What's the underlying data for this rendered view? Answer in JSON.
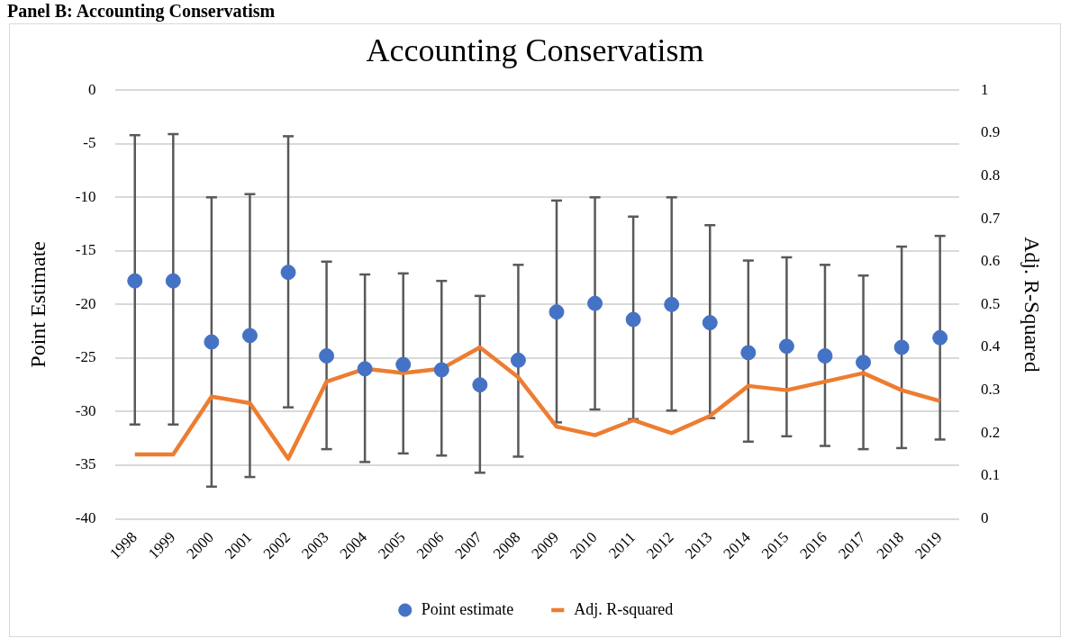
{
  "chart_data": {
    "type": "scatter",
    "title": "Accounting Conservatism",
    "annotations": [
      "Panel B: Accounting Conservatism"
    ],
    "categories": [
      "1998",
      "1999",
      "2000",
      "2001",
      "2002",
      "2003",
      "2004",
      "2005",
      "2006",
      "2007",
      "2008",
      "2009",
      "2010",
      "2011",
      "2012",
      "2013",
      "2014",
      "2015",
      "2016",
      "2017",
      "2018",
      "2019"
    ],
    "ylabel": "Point Estimate",
    "y2label": "Adj. R-Squared",
    "series": [
      {
        "name": "Point estimate",
        "color": "#4472c4",
        "marker": "circle",
        "values": [
          -17.8,
          -17.8,
          -23.5,
          -22.9,
          -17.0,
          -24.8,
          -26.0,
          -25.6,
          -26.1,
          -27.5,
          -25.2,
          -20.7,
          -19.9,
          -21.4,
          -20.0,
          -21.7,
          -24.5,
          -23.9,
          -24.8,
          -25.4,
          -24.0,
          -23.1
        ],
        "errors": [
          [
            -31.2,
            -4.2
          ],
          [
            -31.2,
            -4.1
          ],
          [
            -37.0,
            -10.0
          ],
          [
            -36.1,
            -9.7
          ],
          [
            -29.6,
            -4.3
          ],
          [
            -33.5,
            -16.0
          ],
          [
            -34.7,
            -17.2
          ],
          [
            -33.9,
            -17.1
          ],
          [
            -34.1,
            -17.8
          ],
          [
            -35.7,
            -19.2
          ],
          [
            -34.2,
            -16.3
          ],
          [
            -31.0,
            -10.3
          ],
          [
            -29.8,
            -10.0
          ],
          [
            -30.7,
            -11.8
          ],
          [
            -29.9,
            -10.0
          ],
          [
            -30.6,
            -12.6
          ],
          [
            -32.8,
            -15.9
          ],
          [
            -32.3,
            -15.6
          ],
          [
            -33.2,
            -16.3
          ],
          [
            -33.5,
            -17.3
          ],
          [
            -33.4,
            -14.6
          ],
          [
            -32.6,
            -13.6
          ]
        ]
      },
      {
        "name": "Adj. R-squared",
        "type": "line",
        "axis": "y2",
        "color": "#ed7d31",
        "values": [
          0.15,
          0.15,
          0.285,
          0.27,
          0.14,
          0.32,
          0.35,
          0.34,
          0.35,
          0.4,
          0.33,
          0.215,
          0.195,
          0.23,
          0.2,
          0.24,
          0.31,
          0.3,
          0.32,
          0.34,
          0.3,
          0.275
        ]
      }
    ],
    "ylim": [
      -40,
      0
    ],
    "yticks": [
      -40,
      -35,
      -30,
      -25,
      -20,
      -15,
      -10,
      -5,
      0
    ],
    "y2lim": [
      0,
      1
    ],
    "y2ticks": [
      0,
      0.1,
      0.2,
      0.3,
      0.4,
      0.5,
      0.6,
      0.7,
      0.8,
      0.9,
      1
    ],
    "grid": "y",
    "legend": "bottom"
  }
}
